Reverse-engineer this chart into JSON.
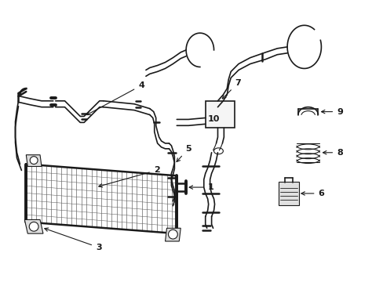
{
  "background_color": "#ffffff",
  "line_color": "#1a1a1a",
  "lw_thin": 0.8,
  "lw_med": 1.2,
  "lw_thick": 1.8,
  "fig_width": 4.89,
  "fig_height": 3.6,
  "dpi": 100
}
